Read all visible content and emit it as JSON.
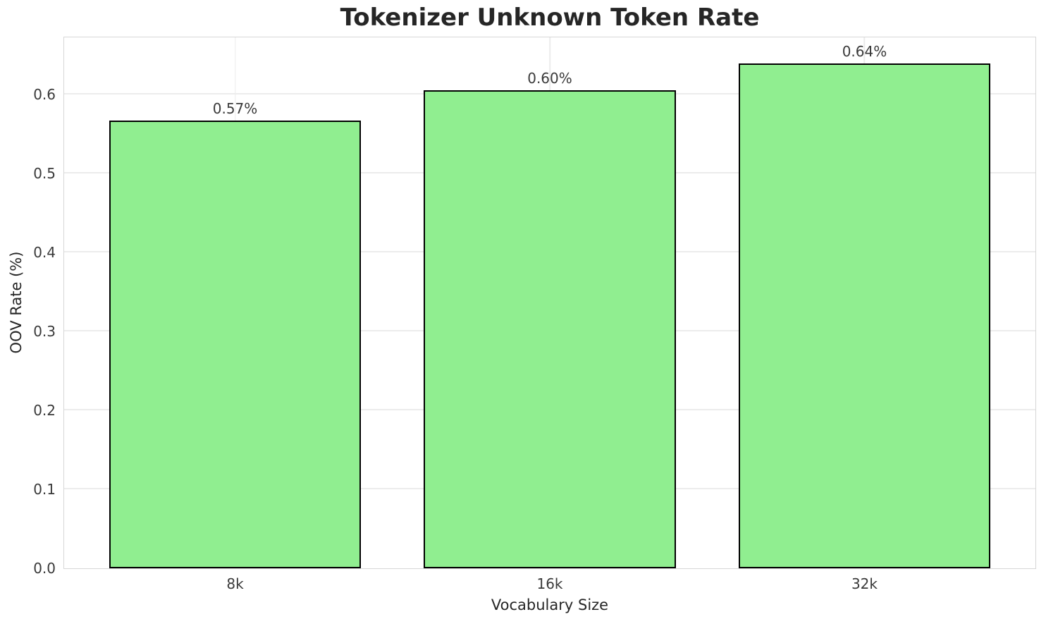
{
  "chart_data": {
    "type": "bar",
    "title": "Tokenizer Unknown Token Rate",
    "xlabel": "Vocabulary Size",
    "ylabel": "OOV Rate (%)",
    "categories": [
      "8k",
      "16k",
      "32k"
    ],
    "values": [
      0.567,
      0.605,
      0.639
    ],
    "bar_labels": [
      "0.57%",
      "0.60%",
      "0.64%"
    ],
    "yticks": [
      0.0,
      0.1,
      0.2,
      0.3,
      0.4,
      0.5,
      0.6
    ],
    "ytick_labels": [
      "0.0",
      "0.1",
      "0.2",
      "0.3",
      "0.4",
      "0.5",
      "0.6"
    ],
    "ylim": [
      0,
      0.672
    ],
    "grid": true,
    "legend": null,
    "colors": {
      "bar_fill": "#90EE90",
      "bar_edge": "#000000",
      "grid": "#ececec",
      "spine": "#d6d6d6",
      "text": "#262626",
      "tick_text": "#3a3a3a",
      "background": "#ffffff"
    }
  }
}
